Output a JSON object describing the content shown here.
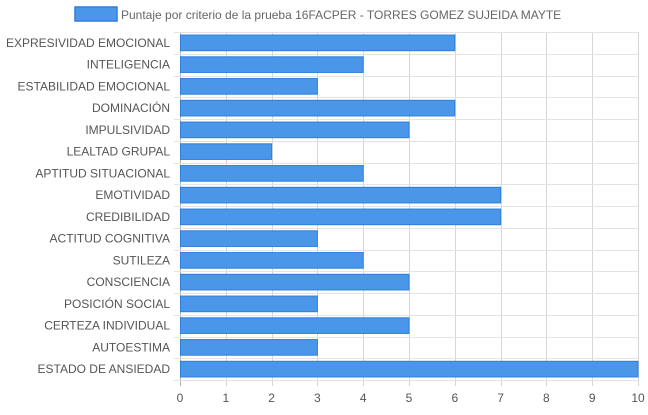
{
  "chart_data": {
    "type": "bar",
    "orientation": "horizontal",
    "categories": [
      "EXPRESIVIDAD EMOCIONAL",
      "INTELIGENCIA",
      "ESTABILIDAD EMOCIONAL",
      "DOMINACIÓN",
      "IMPULSIVIDAD",
      "LEALTAD GRUPAL",
      "APTITUD SITUACIONAL",
      "EMOTIVIDAD",
      "CREDIBILIDAD",
      "ACTITUD COGNITIVA",
      "SUTILEZA",
      "CONSCIENCIA",
      "POSICIÓN SOCIAL",
      "CERTEZA INDIVIDUAL",
      "AUTOESTIMA",
      "ESTADO DE ANSIEDAD"
    ],
    "series": [
      {
        "name": "Puntaje por criterio de la prueba 16FACPER - TORRES GOMEZ SUJEIDA MAYTE",
        "values": [
          6,
          4,
          3,
          6,
          5,
          2,
          4,
          7,
          7,
          3,
          4,
          5,
          3,
          5,
          3,
          10
        ],
        "color": "#4a97ea",
        "border_color": "#2f7fdc"
      }
    ],
    "xlim": [
      0,
      10
    ],
    "x_ticks": [
      "0",
      "1",
      "2",
      "3",
      "4",
      "5",
      "6",
      "7",
      "8",
      "9",
      "10"
    ],
    "grid": true,
    "legend_position": "top-center",
    "title": "",
    "xlabel": "",
    "ylabel": ""
  }
}
